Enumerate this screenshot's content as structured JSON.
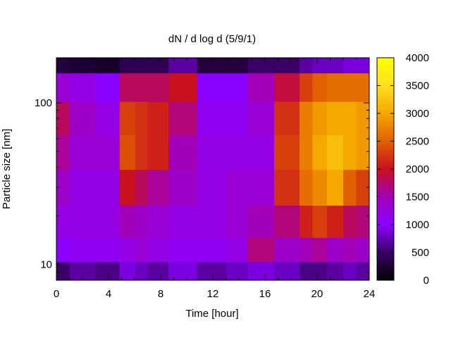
{
  "chart_data": {
    "type": "heatmap",
    "title": "dN / d log d (5/9/1)",
    "xlabel": "Time [hour]",
    "ylabel": "Particle size [nm]",
    "xlim": [
      0,
      24
    ],
    "ylim": [
      8,
      190
    ],
    "y_scale": "log",
    "x_ticks": [
      0,
      4,
      8,
      12,
      16,
      20,
      24
    ],
    "x_tick_labels": [
      "0",
      "4",
      "8",
      "12",
      "16",
      "20",
      "24"
    ],
    "y_ticks": [
      10,
      100
    ],
    "y_tick_labels": [
      "10",
      "100"
    ],
    "colorbar": {
      "range": [
        0,
        4000
      ],
      "ticks": [
        0,
        500,
        1000,
        1500,
        2000,
        2500,
        3000,
        3500,
        4000
      ],
      "tick_labels": [
        "0",
        "500",
        "1000",
        "1500",
        "2000",
        "2500",
        "3000",
        "3500",
        "4000"
      ],
      "colormap": [
        "#000000",
        "#3a0066",
        "#8a00ff",
        "#a100b8",
        "#c8101e",
        "#e06000",
        "#f4a800",
        "#ffe020",
        "#ffff00"
      ]
    },
    "grid": false,
    "x_hours": [
      0,
      2,
      4,
      5.7,
      6.4,
      7.6,
      9.6,
      12,
      14,
      15.4,
      18,
      19.3,
      20,
      21.5,
      22.5,
      23.5
    ],
    "y_nm": [
      9,
      12,
      18,
      30,
      50,
      80,
      130,
      180
    ],
    "values": [
      [
        500,
        700,
        600,
        900,
        800,
        700,
        900,
        700,
        800,
        900,
        800,
        600,
        600,
        700,
        800,
        700
      ],
      [
        1000,
        1100,
        1100,
        1200,
        1300,
        1200,
        1100,
        1100,
        1200,
        1700,
        1400,
        1500,
        1600,
        1400,
        1500,
        1400
      ],
      [
        1200,
        1200,
        1200,
        1500,
        1400,
        1300,
        1200,
        1200,
        1300,
        1500,
        1700,
        2100,
        2300,
        2100,
        1800,
        1700
      ],
      [
        1400,
        1200,
        1200,
        2000,
        1800,
        1600,
        1400,
        1200,
        1300,
        1300,
        2200,
        2600,
        2800,
        3000,
        2500,
        2300
      ],
      [
        1600,
        1300,
        1300,
        2400,
        2200,
        2100,
        1500,
        1200,
        1200,
        1200,
        2300,
        2700,
        3000,
        3200,
        3000,
        2900
      ],
      [
        1800,
        1400,
        1200,
        2300,
        2200,
        2100,
        1700,
        1100,
        1100,
        1300,
        2200,
        2700,
        2900,
        3000,
        3000,
        2900
      ],
      [
        1300,
        1200,
        1000,
        1800,
        1800,
        1800,
        2000,
        1000,
        1000,
        1500,
        1900,
        2300,
        2500,
        2600,
        2600,
        2600
      ],
      [
        300,
        250,
        200,
        400,
        400,
        400,
        700,
        300,
        300,
        500,
        500,
        700,
        800,
        800,
        900,
        900
      ]
    ]
  }
}
